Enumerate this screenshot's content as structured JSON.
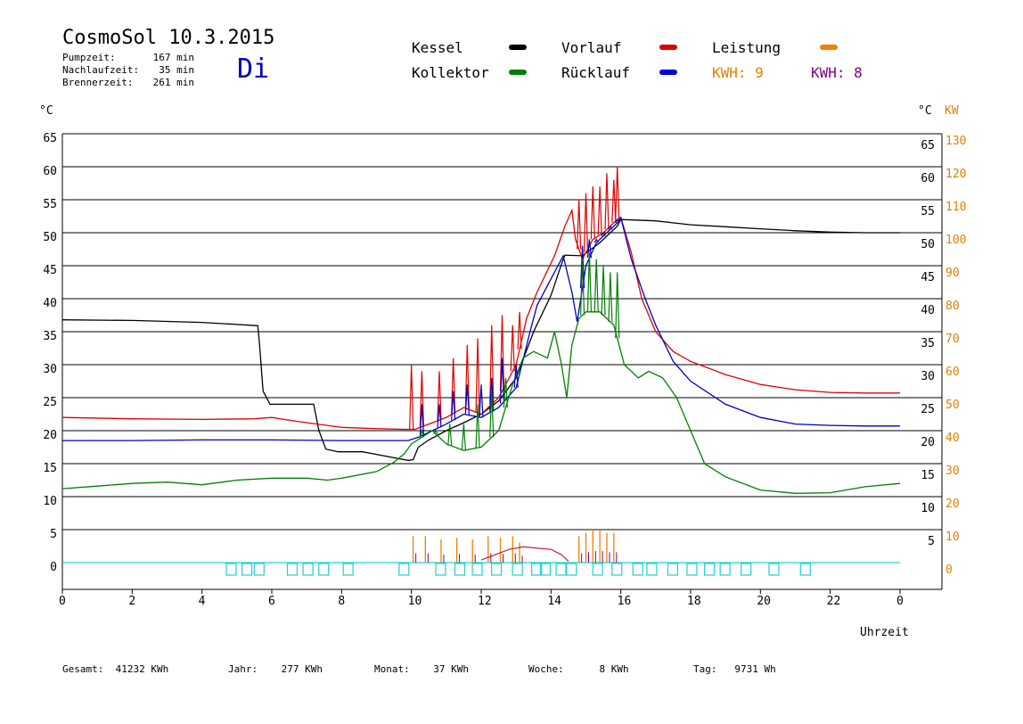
{
  "header": {
    "title": "CosmoSol 10.3.2015",
    "day": "Di",
    "info": [
      {
        "label": "Pumpzeit:",
        "value": "167 min"
      },
      {
        "label": "Nachlaufzeit:",
        "value": "35 min"
      },
      {
        "label": "Brennerzeit:",
        "value": "261 min"
      }
    ]
  },
  "legend": {
    "kessel": {
      "label": "Kessel",
      "color": "#000000"
    },
    "vorlauf": {
      "label": "Vorlauf",
      "color": "#e00000"
    },
    "leistung": {
      "label": "Leistung",
      "color": "#f08000"
    },
    "kollektor": {
      "label": "Kollektor",
      "color": "#008000"
    },
    "ruecklauf": {
      "label": "Rücklauf",
      "color": "#0000e0"
    },
    "kwh1": {
      "label": "KWH: 9",
      "color": "#e08000"
    },
    "kwh2": {
      "label": "KWH: 8",
      "color": "#800080"
    }
  },
  "axes": {
    "left_unit": "°C",
    "right_unit_c": "°C",
    "right_unit_kw": "KW",
    "x_title": "Uhrzeit"
  },
  "footer": [
    {
      "label": "Gesamt:",
      "value": "41232 KWh"
    },
    {
      "label": "Jahr:",
      "value": "277 KWh"
    },
    {
      "label": "Monat:",
      "value": "37 KWh"
    },
    {
      "label": "Woche:",
      "value": "8 KWh"
    },
    {
      "label": "Tag:",
      "value": "9731 Wh"
    }
  ],
  "chart_data": {
    "type": "line",
    "xlabel": "Uhrzeit",
    "ylabel": "°C",
    "x_ticks": [
      "0",
      "2",
      "4",
      "6",
      "8",
      "10",
      "12",
      "14",
      "16",
      "18",
      "20",
      "22",
      "0"
    ],
    "xlim": [
      0,
      24
    ],
    "ylim": [
      -4,
      66
    ],
    "y_ticks_left": [
      "0",
      "5",
      "10",
      "15",
      "20",
      "25",
      "30",
      "35",
      "40",
      "45",
      "50",
      "55",
      "60",
      "65"
    ],
    "y_ticks_right_c": [
      "5",
      "10",
      "15",
      "20",
      "25",
      "30",
      "35",
      "40",
      "45",
      "50",
      "55",
      "60",
      "65"
    ],
    "y_ticks_right_kw": [
      "0",
      "10",
      "20",
      "30",
      "40",
      "50",
      "60",
      "70",
      "80",
      "90",
      "100",
      "110",
      "120",
      "130"
    ],
    "grid": true,
    "series": [
      {
        "name": "Kessel",
        "color": "#000000",
        "points": [
          [
            0,
            36.8
          ],
          [
            2,
            36.7
          ],
          [
            4,
            36.4
          ],
          [
            5,
            36.1
          ],
          [
            5.6,
            35.9
          ],
          [
            5.65,
            33
          ],
          [
            5.75,
            26
          ],
          [
            5.95,
            24
          ],
          [
            7.2,
            24
          ],
          [
            7.35,
            20
          ],
          [
            7.55,
            17.2
          ],
          [
            7.9,
            16.8
          ],
          [
            8.6,
            16.8
          ],
          [
            9.4,
            16
          ],
          [
            9.9,
            15.5
          ],
          [
            10.05,
            15.6
          ],
          [
            10.2,
            17.5
          ],
          [
            10.5,
            18.6
          ],
          [
            11,
            20
          ],
          [
            11.5,
            21.2
          ],
          [
            12,
            22.5
          ],
          [
            12.5,
            24.5
          ],
          [
            13,
            28
          ],
          [
            13.5,
            35
          ],
          [
            14,
            40.5
          ],
          [
            14.35,
            46
          ],
          [
            14.4,
            46.6
          ],
          [
            14.9,
            46.5
          ],
          [
            15.4,
            48.5
          ],
          [
            15.9,
            51
          ],
          [
            16,
            52
          ],
          [
            17,
            51.8
          ],
          [
            18,
            51.2
          ],
          [
            19,
            50.9
          ],
          [
            20,
            50.6
          ],
          [
            21,
            50.3
          ],
          [
            22,
            50.1
          ],
          [
            23,
            50
          ],
          [
            24,
            50
          ]
        ]
      },
      {
        "name": "Vorlauf",
        "color": "#e00000",
        "points": [
          [
            0,
            22
          ],
          [
            2,
            21.8
          ],
          [
            4,
            21.7
          ],
          [
            5.5,
            21.8
          ],
          [
            6,
            22
          ],
          [
            6.6,
            21.5
          ],
          [
            7.3,
            21
          ],
          [
            8,
            20.5
          ],
          [
            9,
            20.3
          ],
          [
            9.8,
            20.2
          ],
          [
            10.1,
            20.2
          ],
          [
            10.5,
            21
          ],
          [
            11,
            22
          ],
          [
            11.5,
            23.5
          ],
          [
            12,
            22.5
          ],
          [
            12.5,
            25
          ],
          [
            13,
            30
          ],
          [
            13.3,
            37
          ],
          [
            13.6,
            41
          ],
          [
            14.1,
            46.5
          ],
          [
            14.4,
            51
          ],
          [
            14.6,
            53.4
          ],
          [
            14.7,
            49
          ],
          [
            14.9,
            46
          ],
          [
            15.2,
            49
          ],
          [
            15.5,
            50
          ],
          [
            15.9,
            52
          ],
          [
            16,
            52.3
          ],
          [
            16.3,
            47
          ],
          [
            16.6,
            40
          ],
          [
            17,
            35
          ],
          [
            17.5,
            32
          ],
          [
            18,
            30.5
          ],
          [
            19,
            28.5
          ],
          [
            20,
            27
          ],
          [
            21,
            26.2
          ],
          [
            22,
            25.8
          ],
          [
            23,
            25.7
          ],
          [
            24,
            25.7
          ]
        ]
      },
      {
        "name": "Rücklauf",
        "color": "#0000c0",
        "points": [
          [
            0,
            18.5
          ],
          [
            2,
            18.5
          ],
          [
            4,
            18.6
          ],
          [
            6,
            18.6
          ],
          [
            8,
            18.5
          ],
          [
            9,
            18.5
          ],
          [
            9.9,
            18.5
          ],
          [
            10.2,
            19
          ],
          [
            10.6,
            20
          ],
          [
            11,
            21
          ],
          [
            11.5,
            22.5
          ],
          [
            12,
            22
          ],
          [
            12.5,
            23.5
          ],
          [
            13,
            26.5
          ],
          [
            13.4,
            35
          ],
          [
            13.6,
            39
          ],
          [
            14,
            43
          ],
          [
            14.35,
            46.5
          ],
          [
            14.6,
            41
          ],
          [
            14.75,
            36.5
          ],
          [
            15,
            45
          ],
          [
            15.3,
            48.5
          ],
          [
            15.6,
            50
          ],
          [
            15.9,
            51.5
          ],
          [
            16,
            52.3
          ],
          [
            16.3,
            46
          ],
          [
            16.7,
            40
          ],
          [
            17,
            36
          ],
          [
            17.5,
            30.5
          ],
          [
            18,
            27.5
          ],
          [
            19,
            24
          ],
          [
            20,
            22
          ],
          [
            21,
            21
          ],
          [
            22,
            20.8
          ],
          [
            23,
            20.7
          ],
          [
            24,
            20.7
          ]
        ]
      },
      {
        "name": "Kollektor",
        "color": "#008000",
        "points": [
          [
            0,
            11.2
          ],
          [
            1,
            11.6
          ],
          [
            2,
            12
          ],
          [
            3,
            12.2
          ],
          [
            4,
            11.8
          ],
          [
            5,
            12.5
          ],
          [
            6,
            12.8
          ],
          [
            7,
            12.8
          ],
          [
            7.6,
            12.5
          ],
          [
            8,
            12.8
          ],
          [
            9,
            13.8
          ],
          [
            9.5,
            15.2
          ],
          [
            9.8,
            16.5
          ],
          [
            10,
            18
          ],
          [
            10.3,
            19
          ],
          [
            10.6,
            20
          ],
          [
            11,
            18
          ],
          [
            11.5,
            17
          ],
          [
            12,
            17.5
          ],
          [
            12.5,
            20
          ],
          [
            12.9,
            27
          ],
          [
            13.2,
            31
          ],
          [
            13.5,
            32
          ],
          [
            13.9,
            31
          ],
          [
            14.1,
            35
          ],
          [
            14.3,
            30
          ],
          [
            14.45,
            25
          ],
          [
            14.6,
            33
          ],
          [
            14.8,
            37
          ],
          [
            15,
            38
          ],
          [
            15.4,
            38
          ],
          [
            15.8,
            36
          ],
          [
            16.1,
            30
          ],
          [
            16.5,
            28
          ],
          [
            16.8,
            29
          ],
          [
            17.2,
            28
          ],
          [
            17.6,
            25
          ],
          [
            18,
            20
          ],
          [
            18.4,
            15
          ],
          [
            19,
            13
          ],
          [
            20,
            11
          ],
          [
            21,
            10.5
          ],
          [
            22,
            10.6
          ],
          [
            23,
            11.5
          ],
          [
            24,
            12
          ]
        ]
      }
    ],
    "spikes": {
      "Vorlauf": [
        [
          10,
          30
        ],
        [
          10.3,
          29
        ],
        [
          10.8,
          29
        ],
        [
          11.2,
          31
        ],
        [
          11.6,
          33
        ],
        [
          11.9,
          34
        ],
        [
          12.3,
          36
        ],
        [
          12.6,
          37.5
        ],
        [
          12.9,
          36
        ],
        [
          13.1,
          38
        ],
        [
          14.8,
          55
        ],
        [
          15.0,
          56
        ],
        [
          15.2,
          57
        ],
        [
          15.4,
          57
        ],
        [
          15.6,
          59
        ],
        [
          15.8,
          58
        ],
        [
          15.9,
          60
        ]
      ],
      "Rücklauf": [
        [
          10.3,
          24
        ],
        [
          10.8,
          24
        ],
        [
          11.2,
          26
        ],
        [
          11.6,
          27
        ],
        [
          12.0,
          27
        ],
        [
          12.3,
          28
        ],
        [
          12.6,
          31
        ],
        [
          13.0,
          30
        ],
        [
          14.9,
          48
        ],
        [
          15.1,
          49
        ],
        [
          15.3,
          49
        ],
        [
          15.5,
          50
        ],
        [
          15.7,
          51
        ],
        [
          15.9,
          52
        ]
      ],
      "Kollektor": [
        [
          10.3,
          20
        ],
        [
          10.7,
          20
        ],
        [
          11.1,
          21
        ],
        [
          11.5,
          21
        ],
        [
          11.9,
          24
        ],
        [
          12.3,
          26
        ],
        [
          12.7,
          28
        ],
        [
          14.9,
          46
        ],
        [
          15.1,
          47
        ],
        [
          15.3,
          46
        ],
        [
          15.5,
          45
        ],
        [
          15.7,
          44
        ],
        [
          15.9,
          44
        ]
      ]
    },
    "leistung_spikes_kw": [
      [
        10.05,
        8
      ],
      [
        10.4,
        8
      ],
      [
        10.85,
        7
      ],
      [
        11.3,
        7.5
      ],
      [
        11.75,
        7
      ],
      [
        12.2,
        8
      ],
      [
        12.55,
        7.5
      ],
      [
        12.9,
        8
      ],
      [
        13.1,
        6
      ],
      [
        14.8,
        8
      ],
      [
        15.0,
        9
      ],
      [
        15.2,
        10
      ],
      [
        15.4,
        10
      ],
      [
        15.6,
        9
      ],
      [
        15.8,
        9
      ]
    ],
    "pump_markers_h": [
      4.85,
      5.3,
      5.65,
      6.6,
      7.05,
      7.5,
      8.2,
      9.8,
      10.85,
      11.4,
      11.9,
      12.45,
      13.05,
      13.6,
      13.85,
      14.3,
      14.6,
      15.35,
      15.9,
      16.5,
      16.9,
      17.5,
      18.05,
      18.55,
      19.0,
      19.6,
      20.4,
      21.3
    ]
  },
  "footer_values": true
}
